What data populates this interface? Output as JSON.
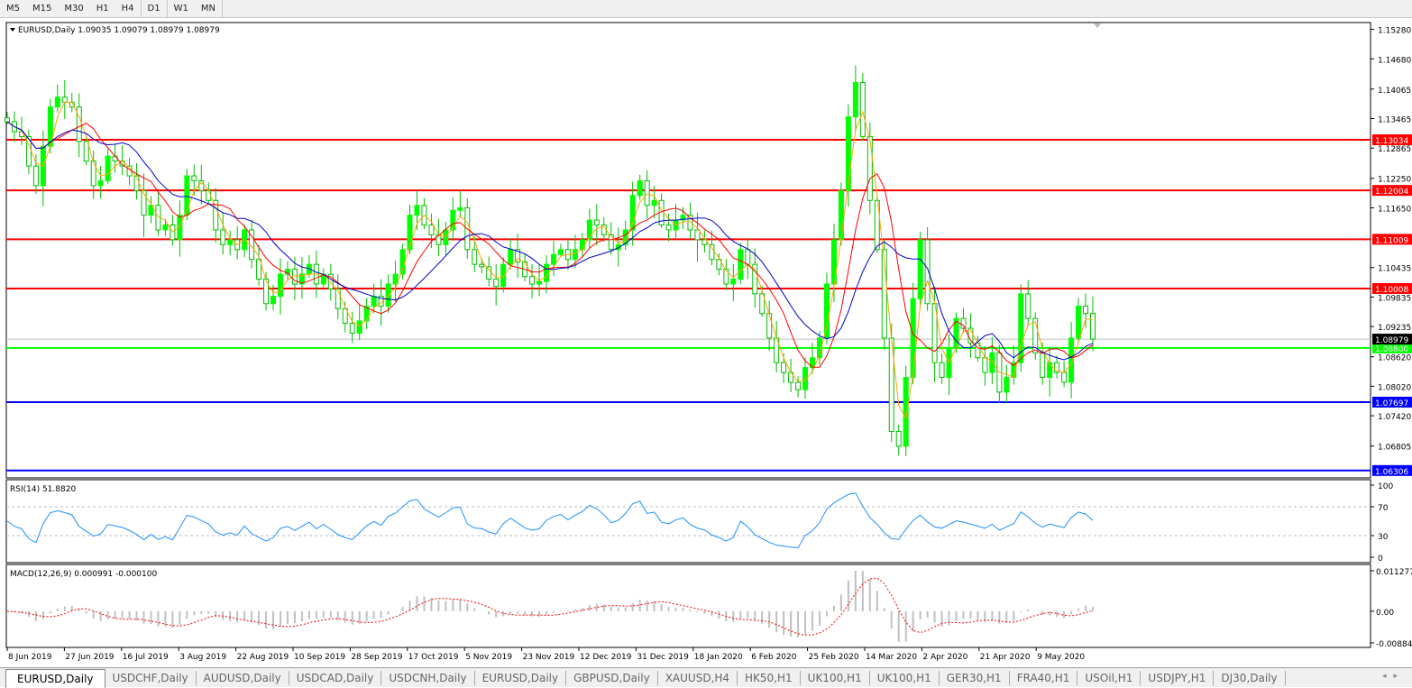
{
  "toolbar": {
    "timeframes": [
      "M5",
      "M15",
      "M30",
      "H1",
      "H4",
      "D1",
      "W1",
      "MN"
    ],
    "active": "D1"
  },
  "chart_header": {
    "symbol": "EURUSD,Daily",
    "ohlc": "1.09035 1.09079 1.08979 1.08979"
  },
  "rsi_label": "RSI(14) 51.8820",
  "macd_label": "MACD(12,26,9) 0.000991 -0.000100",
  "colors": {
    "bull": "#00ff00",
    "ma_fast": "#ffa500",
    "ma_mid": "#ff0000",
    "ma_slow": "#0000cc",
    "rsi": "#1e90ff",
    "macd_hist": "#c0c0c0",
    "macd_signal": "#ff0000",
    "resistance": "#ff0000",
    "pivot": "#00ff00",
    "support": "#0000ff"
  },
  "chart_data": {
    "type": "candlestick",
    "price_ticks": [
      "1.15280",
      "1.14680",
      "1.14065",
      "1.13465",
      "1.12865",
      "1.12250",
      "1.11650",
      "1.10435",
      "1.09835",
      "1.09235",
      "1.08620",
      "1.08020",
      "1.07420",
      "1.06805"
    ],
    "price_tick_values": [
      1.1528,
      1.1468,
      1.14065,
      1.13465,
      1.12865,
      1.1225,
      1.1165,
      1.10435,
      1.09835,
      1.09235,
      1.0862,
      1.0802,
      1.0742,
      1.06805
    ],
    "ylim": [
      1.0622,
      1.1541
    ],
    "time_ticks": [
      "8 Jun 2019",
      "27 Jun 2019",
      "16 Jul 2019",
      "3 Aug 2019",
      "22 Aug 2019",
      "10 Sep 2019",
      "28 Sep 2019",
      "17 Oct 2019",
      "5 Nov 2019",
      "23 Nov 2019",
      "12 Dec 2019",
      "31 Dec 2019",
      "18 Jan 2020",
      "6 Feb 2020",
      "25 Feb 2020",
      "14 Mar 2020",
      "2 Apr 2020",
      "21 Apr 2020",
      "9 May 2020"
    ],
    "bid": {
      "value": 1.08979,
      "label": "1.08979"
    },
    "levels": [
      {
        "value": 1.13034,
        "label": "1.13034",
        "kind": "resistance"
      },
      {
        "value": 1.12004,
        "label": "1.12004",
        "kind": "resistance"
      },
      {
        "value": 1.11009,
        "label": "1.11009",
        "kind": "resistance"
      },
      {
        "value": 1.10008,
        "label": "1.10008",
        "kind": "resistance"
      },
      {
        "value": 1.088,
        "label": "1.08800",
        "kind": "pivot"
      },
      {
        "value": 1.07697,
        "label": "1.07697",
        "kind": "support"
      },
      {
        "value": 1.06306,
        "label": "1.06306",
        "kind": "support"
      }
    ],
    "closes": [
      1.134,
      1.132,
      1.131,
      1.125,
      1.121,
      1.129,
      1.137,
      1.139,
      1.138,
      1.137,
      1.13,
      1.126,
      1.121,
      1.122,
      1.127,
      1.126,
      1.125,
      1.123,
      1.12,
      1.115,
      1.117,
      1.112,
      1.113,
      1.11,
      1.115,
      1.123,
      1.122,
      1.12,
      1.118,
      1.112,
      1.109,
      1.11,
      1.108,
      1.112,
      1.106,
      1.102,
      1.097,
      1.0985,
      1.103,
      1.104,
      1.101,
      1.103,
      1.105,
      1.101,
      1.103,
      1.1,
      1.096,
      1.093,
      1.091,
      1.0935,
      1.0965,
      1.0985,
      1.0965,
      1.101,
      1.103,
      1.108,
      1.115,
      1.117,
      1.113,
      1.111,
      1.109,
      1.112,
      1.116,
      1.1165,
      1.108,
      1.105,
      1.1045,
      1.102,
      1.1005,
      1.105,
      1.108,
      1.1055,
      1.1025,
      1.101,
      1.1015,
      1.105,
      1.107,
      1.108,
      1.106,
      1.108,
      1.11,
      1.114,
      1.113,
      1.111,
      1.108,
      1.109,
      1.112,
      1.119,
      1.122,
      1.117,
      1.118,
      1.113,
      1.112,
      1.114,
      1.115,
      1.112,
      1.11,
      1.109,
      1.106,
      1.104,
      1.101,
      1.102,
      1.108,
      1.105,
      1.099,
      1.095,
      1.09,
      1.085,
      1.083,
      1.081,
      1.0795,
      1.084,
      1.086,
      1.09,
      1.101,
      1.11,
      1.12,
      1.135,
      1.142,
      1.131,
      1.118,
      1.108,
      1.09,
      1.071,
      1.068,
      1.082,
      1.098,
      1.11,
      1.097,
      1.085,
      1.082,
      1.088,
      1.094,
      1.092,
      1.089,
      1.086,
      1.083,
      1.087,
      1.079,
      1.082,
      1.085,
      1.099,
      1.094,
      1.087,
      1.082,
      1.085,
      1.083,
      1.081,
      1.09,
      1.0965,
      1.095,
      1.0898
    ],
    "rsi": {
      "ticks": [
        "100",
        "70",
        "30",
        "0"
      ],
      "levels": [
        70,
        30
      ],
      "ylim": [
        0,
        100
      ]
    },
    "macd": {
      "ticks": [
        "0.011277",
        "0.00",
        "-0.008845"
      ],
      "ylim": [
        -0.008845,
        0.011277
      ]
    }
  },
  "tabs": [
    "EURUSD,Daily",
    "USDCHF,Daily",
    "AUDUSD,Daily",
    "USDCAD,Daily",
    "USDCNH,Daily",
    "EURUSD,Daily",
    "GBPUSD,Daily",
    "XAUUSD,H4",
    "HK50,H1",
    "UK100,H1",
    "UK100,H1",
    "GER30,H1",
    "FRA40,H1",
    "USOil,H1",
    "USDJPY,H1",
    "DJ30,Daily"
  ],
  "active_tab": 0
}
